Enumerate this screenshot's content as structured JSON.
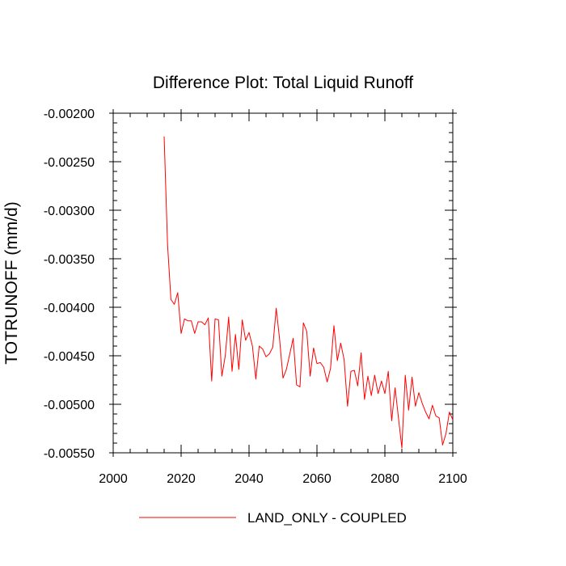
{
  "chart_data": {
    "type": "line",
    "title": "Difference Plot: Total Liquid Runoff",
    "xlabel": "",
    "ylabel": "TOTRUNOFF  (mm/d)",
    "xlim": [
      2000,
      2100
    ],
    "ylim": [
      -0.0055,
      -0.002
    ],
    "x_ticks": [
      2000,
      2020,
      2040,
      2060,
      2080,
      2100
    ],
    "x_tick_labels": [
      "2000",
      "2020",
      "2040",
      "2060",
      "2080",
      "2100"
    ],
    "y_ticks": [
      -0.002,
      -0.0025,
      -0.003,
      -0.0035,
      -0.004,
      -0.0045,
      -0.005,
      -0.0055
    ],
    "y_tick_labels": [
      "-0.00200",
      "-0.00250",
      "-0.00300",
      "-0.00350",
      "-0.00400",
      "-0.00450",
      "-0.00500",
      "-0.00550"
    ],
    "x_minor_step": 5,
    "y_minor_step": 0.0001,
    "grid": false,
    "legend_position": "bottom",
    "series": [
      {
        "name": "LAND_ONLY - COUPLED",
        "color": "#ff0000",
        "x": [
          2015,
          2016,
          2017,
          2018,
          2019,
          2020,
          2021,
          2022,
          2023,
          2024,
          2025,
          2026,
          2027,
          2028,
          2029,
          2030,
          2031,
          2032,
          2033,
          2034,
          2035,
          2036,
          2037,
          2038,
          2039,
          2040,
          2041,
          2042,
          2043,
          2044,
          2045,
          2046,
          2047,
          2048,
          2049,
          2050,
          2051,
          2052,
          2053,
          2054,
          2055,
          2056,
          2057,
          2058,
          2059,
          2060,
          2061,
          2062,
          2063,
          2064,
          2065,
          2066,
          2067,
          2068,
          2069,
          2070,
          2071,
          2072,
          2073,
          2074,
          2075,
          2076,
          2077,
          2078,
          2079,
          2080,
          2081,
          2082,
          2083,
          2084,
          2085,
          2086,
          2087,
          2088,
          2089,
          2090,
          2091,
          2092,
          2093,
          2094,
          2095,
          2096,
          2097,
          2098,
          2099,
          2100
        ],
        "values": [
          -0.00224,
          -0.00335,
          -0.00392,
          -0.00397,
          -0.00385,
          -0.00427,
          -0.00412,
          -0.00414,
          -0.00414,
          -0.00427,
          -0.00415,
          -0.00415,
          -0.00418,
          -0.00411,
          -0.00476,
          -0.00412,
          -0.00413,
          -0.00471,
          -0.0045,
          -0.0041,
          -0.00466,
          -0.00428,
          -0.00464,
          -0.00413,
          -0.00434,
          -0.00426,
          -0.0044,
          -0.00474,
          -0.0044,
          -0.00443,
          -0.00451,
          -0.00448,
          -0.00441,
          -0.00401,
          -0.00433,
          -0.00473,
          -0.00464,
          -0.00448,
          -0.00432,
          -0.0048,
          -0.00482,
          -0.00416,
          -0.00425,
          -0.00471,
          -0.00442,
          -0.00458,
          -0.00457,
          -0.00462,
          -0.00477,
          -0.00463,
          -0.00419,
          -0.00455,
          -0.00437,
          -0.00454,
          -0.00502,
          -0.00466,
          -0.00465,
          -0.00481,
          -0.00447,
          -0.00495,
          -0.00471,
          -0.00491,
          -0.0047,
          -0.00489,
          -0.00476,
          -0.00489,
          -0.00466,
          -0.00517,
          -0.00483,
          -0.00514,
          -0.00545,
          -0.0047,
          -0.00506,
          -0.00472,
          -0.00502,
          -0.00488,
          -0.00499,
          -0.00508,
          -0.00515,
          -0.00501,
          -0.00512,
          -0.00514,
          -0.00542,
          -0.0053,
          -0.00508,
          -0.00516
        ]
      }
    ]
  }
}
